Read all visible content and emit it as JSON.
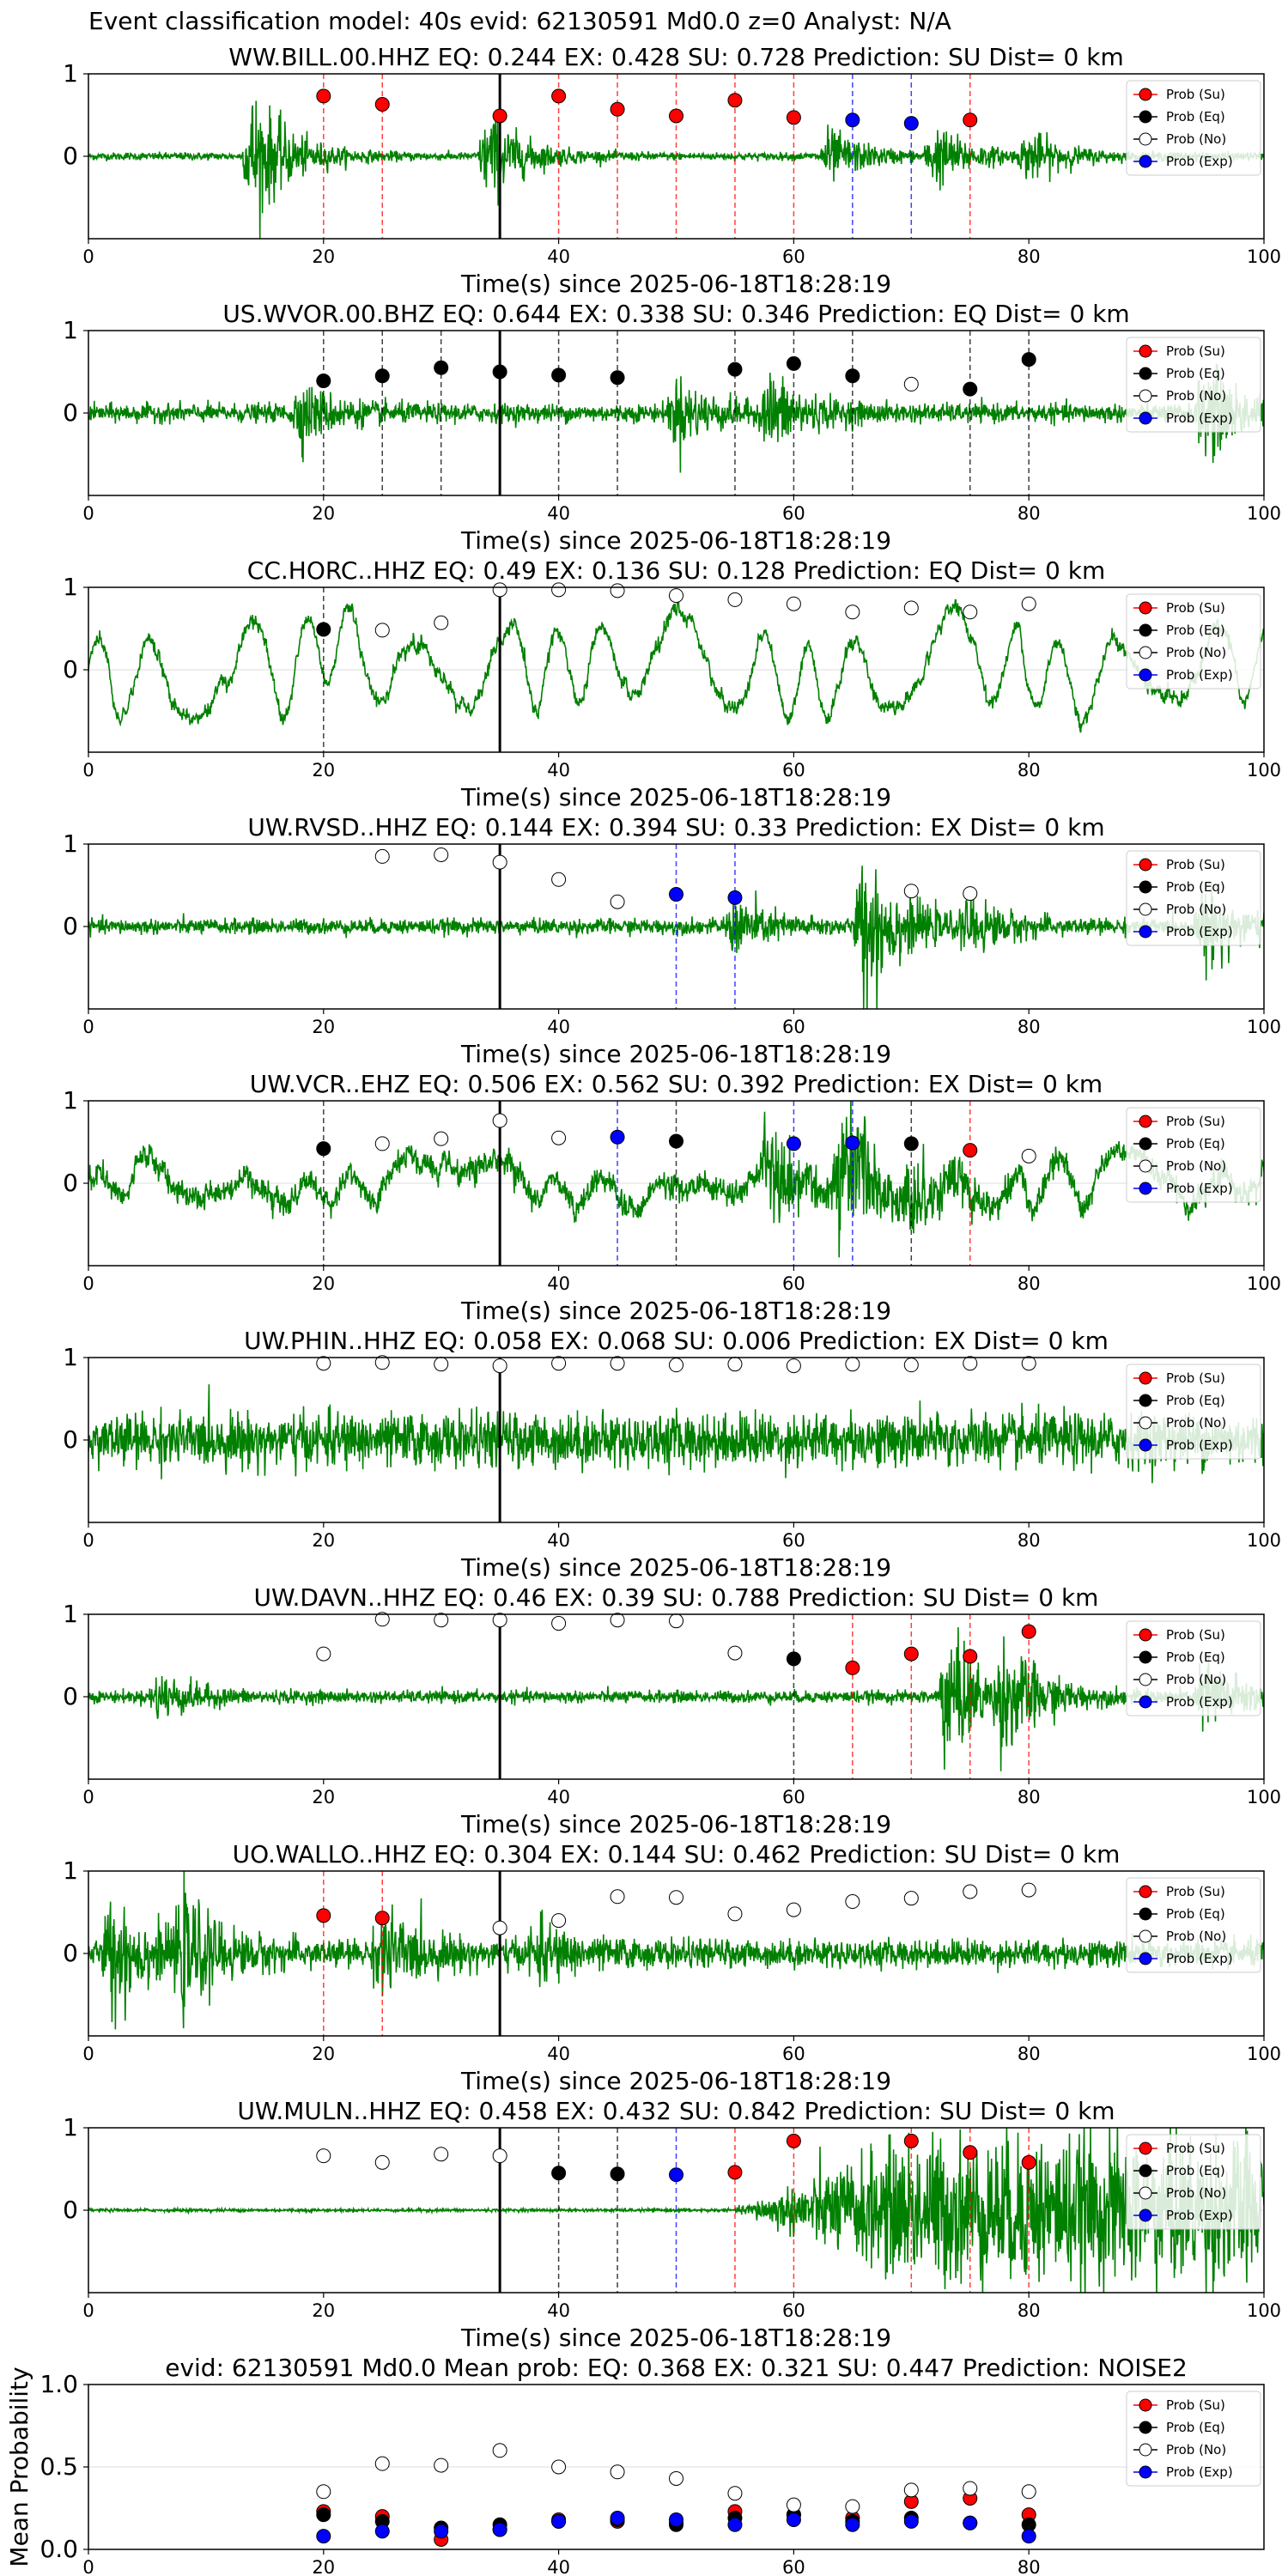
{
  "suptitle": "Event classification model: 40s evid: 62130591 Md0.0 z=0 Analyst: N/A",
  "colors": {
    "trace": "#008000",
    "su": "#ff0000",
    "eq": "#000000",
    "no": "#ffffff",
    "exp": "#0000ff",
    "su_line": "#ff0000",
    "eq_line": "#000000",
    "exp_line": "#0000ff",
    "arrival": "#000000"
  },
  "legend_labels": [
    "Prob (Su)",
    "Prob (Eq)",
    "Prob (No)",
    "Prob (Exp)"
  ],
  "chart_data": [
    {
      "type": "line",
      "title": "WW.BILL.00.HHZ   EQ: 0.244  EX: 0.428  SU: 0.728   Prediction: SU    Dist= 0 km",
      "xlabel": "Time(s) since 2025-06-18T18:28:19",
      "xlim": [
        0,
        100
      ],
      "ylim": [
        -1,
        1
      ],
      "xticks": [
        "0",
        "20",
        "40",
        "60",
        "80",
        "100"
      ],
      "yticks": [
        "0",
        "1"
      ],
      "arrival": 35,
      "noise": 0.05,
      "bursts": [
        [
          14,
          0.9
        ],
        [
          34,
          0.6
        ],
        [
          63,
          0.35
        ],
        [
          72,
          0.4
        ],
        [
          80,
          0.3
        ]
      ],
      "points": [
        [
          20,
          0.73,
          "su"
        ],
        [
          25,
          0.63,
          "su"
        ],
        [
          35,
          0.49,
          "su"
        ],
        [
          40,
          0.73,
          "su"
        ],
        [
          45,
          0.57,
          "su"
        ],
        [
          50,
          0.49,
          "su"
        ],
        [
          55,
          0.68,
          "su"
        ],
        [
          60,
          0.47,
          "su"
        ],
        [
          65,
          0.44,
          "exp"
        ],
        [
          70,
          0.4,
          "exp"
        ],
        [
          75,
          0.44,
          "su"
        ]
      ]
    },
    {
      "type": "line",
      "title": "US.WVOR.00.BHZ   EQ: 0.644  EX: 0.338  SU: 0.346   Prediction: EQ    Dist= 0 km",
      "xlabel": "Time(s) since 2025-06-18T18:28:19",
      "xlim": [
        0,
        100
      ],
      "ylim": [
        -1,
        1
      ],
      "xticks": [
        "0",
        "20",
        "40",
        "60",
        "80",
        "100"
      ],
      "yticks": [
        "0",
        "1"
      ],
      "arrival": 35,
      "noise": 0.12,
      "bursts": [
        [
          18,
          0.35
        ],
        [
          50,
          0.4
        ],
        [
          58,
          0.45
        ],
        [
          95,
          0.6
        ]
      ],
      "points": [
        [
          20,
          0.39,
          "eq"
        ],
        [
          25,
          0.45,
          "eq"
        ],
        [
          30,
          0.55,
          "eq"
        ],
        [
          35,
          0.5,
          "eq"
        ],
        [
          40,
          0.46,
          "eq"
        ],
        [
          45,
          0.43,
          "eq"
        ],
        [
          55,
          0.53,
          "eq"
        ],
        [
          60,
          0.6,
          "eq"
        ],
        [
          65,
          0.45,
          "eq"
        ],
        [
          70,
          0.35,
          "no"
        ],
        [
          75,
          0.29,
          "eq"
        ],
        [
          80,
          0.65,
          "eq"
        ]
      ]
    },
    {
      "type": "line",
      "title": "CC.HORC..HHZ   EQ: 0.49  EX: 0.136  SU: 0.128   Prediction: EQ    Dist= 0 km",
      "xlabel": "Time(s) since 2025-06-18T18:28:19",
      "xlim": [
        0,
        100
      ],
      "ylim": [
        -1,
        1
      ],
      "xticks": [
        "0",
        "20",
        "40",
        "60",
        "80",
        "100"
      ],
      "yticks": [
        "0",
        "1"
      ],
      "arrival": 35,
      "noise": 0.08,
      "wave": 0.6,
      "bursts": [],
      "points": [
        [
          20,
          0.49,
          "eq"
        ],
        [
          25,
          0.48,
          "no"
        ],
        [
          30,
          0.57,
          "no"
        ],
        [
          35,
          0.97,
          "no"
        ],
        [
          40,
          0.97,
          "no"
        ],
        [
          45,
          0.96,
          "no"
        ],
        [
          50,
          0.9,
          "no"
        ],
        [
          55,
          0.85,
          "no"
        ],
        [
          60,
          0.8,
          "no"
        ],
        [
          65,
          0.7,
          "no"
        ],
        [
          70,
          0.75,
          "no"
        ],
        [
          75,
          0.7,
          "no"
        ],
        [
          80,
          0.8,
          "no"
        ]
      ]
    },
    {
      "type": "line",
      "title": "UW.RVSD..HHZ   EQ: 0.144  EX: 0.394  SU: 0.33   Prediction: EX    Dist= 0 km",
      "xlabel": "Time(s) since 2025-06-18T18:28:19",
      "xlim": [
        0,
        100
      ],
      "ylim": [
        -1,
        1
      ],
      "xticks": [
        "0",
        "20",
        "40",
        "60",
        "80",
        "100"
      ],
      "yticks": [
        "0",
        "1"
      ],
      "arrival": 35,
      "noise": 0.1,
      "bursts": [
        [
          55,
          0.35
        ],
        [
          66,
          1.0
        ],
        [
          75,
          0.3
        ],
        [
          95,
          0.5
        ]
      ],
      "points": [
        [
          25,
          0.85,
          "no"
        ],
        [
          30,
          0.87,
          "no"
        ],
        [
          35,
          0.78,
          "no"
        ],
        [
          40,
          0.57,
          "no"
        ],
        [
          45,
          0.3,
          "no"
        ],
        [
          50,
          0.39,
          "exp"
        ],
        [
          55,
          0.35,
          "exp"
        ],
        [
          70,
          0.43,
          "no"
        ],
        [
          75,
          0.4,
          "no"
        ]
      ]
    },
    {
      "type": "line",
      "title": "UW.VCR..EHZ   EQ: 0.506  EX: 0.562  SU: 0.392   Prediction: EX    Dist= 0 km",
      "xlabel": "Time(s) since 2025-06-18T18:28:19",
      "xlim": [
        0,
        100
      ],
      "ylim": [
        -1,
        1
      ],
      "xticks": [
        "0",
        "20",
        "40",
        "60",
        "80",
        "100"
      ],
      "yticks": [
        "0",
        "1"
      ],
      "arrival": 35,
      "noise": 0.15,
      "wave": 0.2,
      "bursts": [
        [
          58,
          0.6
        ],
        [
          64,
          0.8
        ],
        [
          70,
          0.4
        ]
      ],
      "points": [
        [
          20,
          0.42,
          "eq"
        ],
        [
          25,
          0.48,
          "no"
        ],
        [
          30,
          0.54,
          "no"
        ],
        [
          35,
          0.76,
          "no"
        ],
        [
          40,
          0.55,
          "no"
        ],
        [
          45,
          0.56,
          "exp"
        ],
        [
          50,
          0.51,
          "eq"
        ],
        [
          60,
          0.48,
          "exp"
        ],
        [
          65,
          0.49,
          "exp"
        ],
        [
          70,
          0.48,
          "eq"
        ],
        [
          75,
          0.4,
          "su"
        ],
        [
          80,
          0.33,
          "no"
        ]
      ]
    },
    {
      "type": "line",
      "title": "UW.PHIN..HHZ   EQ: 0.058  EX: 0.068  SU: 0.006   Prediction: EX    Dist= 0 km",
      "xlabel": "Time(s) since 2025-06-18T18:28:19",
      "xlim": [
        0,
        100
      ],
      "ylim": [
        -1,
        1
      ],
      "xticks": [
        "0",
        "20",
        "40",
        "60",
        "80",
        "100"
      ],
      "yticks": [
        "0",
        "1"
      ],
      "arrival": 35,
      "noise": 0.35,
      "bursts": [],
      "points": [
        [
          20,
          0.93,
          "no"
        ],
        [
          25,
          0.94,
          "no"
        ],
        [
          30,
          0.92,
          "no"
        ],
        [
          35,
          0.9,
          "no"
        ],
        [
          40,
          0.93,
          "no"
        ],
        [
          45,
          0.93,
          "no"
        ],
        [
          50,
          0.91,
          "no"
        ],
        [
          55,
          0.92,
          "no"
        ],
        [
          60,
          0.9,
          "no"
        ],
        [
          65,
          0.92,
          "no"
        ],
        [
          70,
          0.91,
          "no"
        ],
        [
          75,
          0.93,
          "no"
        ],
        [
          80,
          0.93,
          "no"
        ]
      ]
    },
    {
      "type": "line",
      "title": "UW.DAVN..HHZ   EQ: 0.46  EX: 0.39  SU: 0.788   Prediction: SU    Dist= 0 km",
      "xlabel": "Time(s) since 2025-06-18T18:28:19",
      "xlim": [
        0,
        100
      ],
      "ylim": [
        -1,
        1
      ],
      "xticks": [
        "0",
        "20",
        "40",
        "60",
        "80",
        "100"
      ],
      "yticks": [
        "0",
        "1"
      ],
      "arrival": 35,
      "noise": 0.08,
      "bursts": [
        [
          6,
          0.3
        ],
        [
          73,
          0.9
        ],
        [
          78,
          0.6
        ],
        [
          95,
          0.5
        ]
      ],
      "points": [
        [
          20,
          0.52,
          "no"
        ],
        [
          25,
          0.94,
          "no"
        ],
        [
          30,
          0.93,
          "no"
        ],
        [
          35,
          0.93,
          "no"
        ],
        [
          40,
          0.89,
          "no"
        ],
        [
          45,
          0.93,
          "no"
        ],
        [
          50,
          0.92,
          "no"
        ],
        [
          55,
          0.53,
          "no"
        ],
        [
          60,
          0.46,
          "eq"
        ],
        [
          65,
          0.35,
          "su"
        ],
        [
          70,
          0.52,
          "su"
        ],
        [
          75,
          0.49,
          "su"
        ],
        [
          80,
          0.79,
          "su"
        ]
      ]
    },
    {
      "type": "line",
      "title": "UO.WALLO..HHZ   EQ: 0.304  EX: 0.144  SU: 0.462   Prediction: SU    Dist= 0 km",
      "xlabel": "Time(s) since 2025-06-18T18:28:19",
      "xlim": [
        0,
        100
      ],
      "ylim": [
        -1,
        1
      ],
      "xticks": [
        "0",
        "20",
        "40",
        "60",
        "80",
        "100"
      ],
      "yticks": [
        "0",
        "1"
      ],
      "arrival": 35,
      "noise": 0.18,
      "bursts": [
        [
          2,
          0.7
        ],
        [
          8,
          0.6
        ],
        [
          25,
          0.5
        ],
        [
          38,
          0.3
        ]
      ],
      "points": [
        [
          20,
          0.46,
          "su"
        ],
        [
          25,
          0.43,
          "su"
        ],
        [
          35,
          0.31,
          "no"
        ],
        [
          40,
          0.4,
          "no"
        ],
        [
          45,
          0.69,
          "no"
        ],
        [
          50,
          0.68,
          "no"
        ],
        [
          55,
          0.48,
          "no"
        ],
        [
          60,
          0.53,
          "no"
        ],
        [
          65,
          0.63,
          "no"
        ],
        [
          70,
          0.67,
          "no"
        ],
        [
          75,
          0.75,
          "no"
        ],
        [
          80,
          0.77,
          "no"
        ]
      ]
    },
    {
      "type": "line",
      "title": "UW.MULN..HHZ   EQ: 0.458  EX: 0.432  SU: 0.842   Prediction: SU    Dist= 0 km",
      "xlabel": "Time(s) since 2025-06-18T18:28:19",
      "xlim": [
        0,
        100
      ],
      "ylim": [
        -1,
        1
      ],
      "xticks": [
        "0",
        "20",
        "40",
        "60",
        "80",
        "100"
      ],
      "yticks": [
        "0",
        "1"
      ],
      "arrival": 35,
      "noise": 0.02,
      "bursts": [],
      "ramp": [
        55,
        0.95
      ],
      "points": [
        [
          20,
          0.66,
          "no"
        ],
        [
          25,
          0.58,
          "no"
        ],
        [
          30,
          0.68,
          "no"
        ],
        [
          35,
          0.66,
          "no"
        ],
        [
          40,
          0.45,
          "eq"
        ],
        [
          45,
          0.44,
          "eq"
        ],
        [
          50,
          0.43,
          "exp"
        ],
        [
          55,
          0.46,
          "su"
        ],
        [
          60,
          0.84,
          "su"
        ],
        [
          70,
          0.84,
          "su"
        ],
        [
          75,
          0.7,
          "su"
        ],
        [
          80,
          0.58,
          "su"
        ]
      ]
    },
    {
      "type": "scatter",
      "title": "evid: 62130591  Md0.0   Mean prob:    EQ: 0.368  EX: 0.321  SU: 0.447   Prediction: NOISE2",
      "ylabel": "Mean Probability",
      "xlim": [
        0,
        100
      ],
      "ylim": [
        0,
        1
      ],
      "xticks": [
        "0",
        "20",
        "40",
        "60",
        "80"
      ],
      "yticks": [
        "0.0",
        "0.5",
        "1.0"
      ],
      "series": [
        {
          "key": "su",
          "x": [
            20,
            25,
            30,
            35,
            40,
            45,
            50,
            55,
            60,
            65,
            70,
            75,
            80
          ],
          "values": [
            0.23,
            0.2,
            0.06,
            0.12,
            0.18,
            0.17,
            0.16,
            0.23,
            0.21,
            0.19,
            0.29,
            0.31,
            0.21
          ]
        },
        {
          "key": "eq",
          "x": [
            20,
            25,
            30,
            35,
            40,
            45,
            50,
            55,
            60,
            65,
            70,
            75,
            80
          ],
          "values": [
            0.21,
            0.17,
            0.13,
            0.15,
            0.17,
            0.18,
            0.15,
            0.19,
            0.21,
            0.17,
            0.19,
            0.16,
            0.15
          ]
        },
        {
          "key": "no",
          "x": [
            20,
            25,
            30,
            35,
            40,
            45,
            50,
            55,
            60,
            65,
            70,
            75,
            80
          ],
          "values": [
            0.35,
            0.52,
            0.51,
            0.6,
            0.5,
            0.47,
            0.43,
            0.34,
            0.27,
            0.26,
            0.36,
            0.37,
            0.35
          ]
        },
        {
          "key": "exp",
          "x": [
            20,
            25,
            30,
            35,
            40,
            45,
            50,
            55,
            60,
            65,
            70,
            75,
            80
          ],
          "values": [
            0.08,
            0.11,
            0.11,
            0.12,
            0.17,
            0.19,
            0.18,
            0.15,
            0.18,
            0.15,
            0.17,
            0.16,
            0.08
          ]
        }
      ]
    }
  ]
}
